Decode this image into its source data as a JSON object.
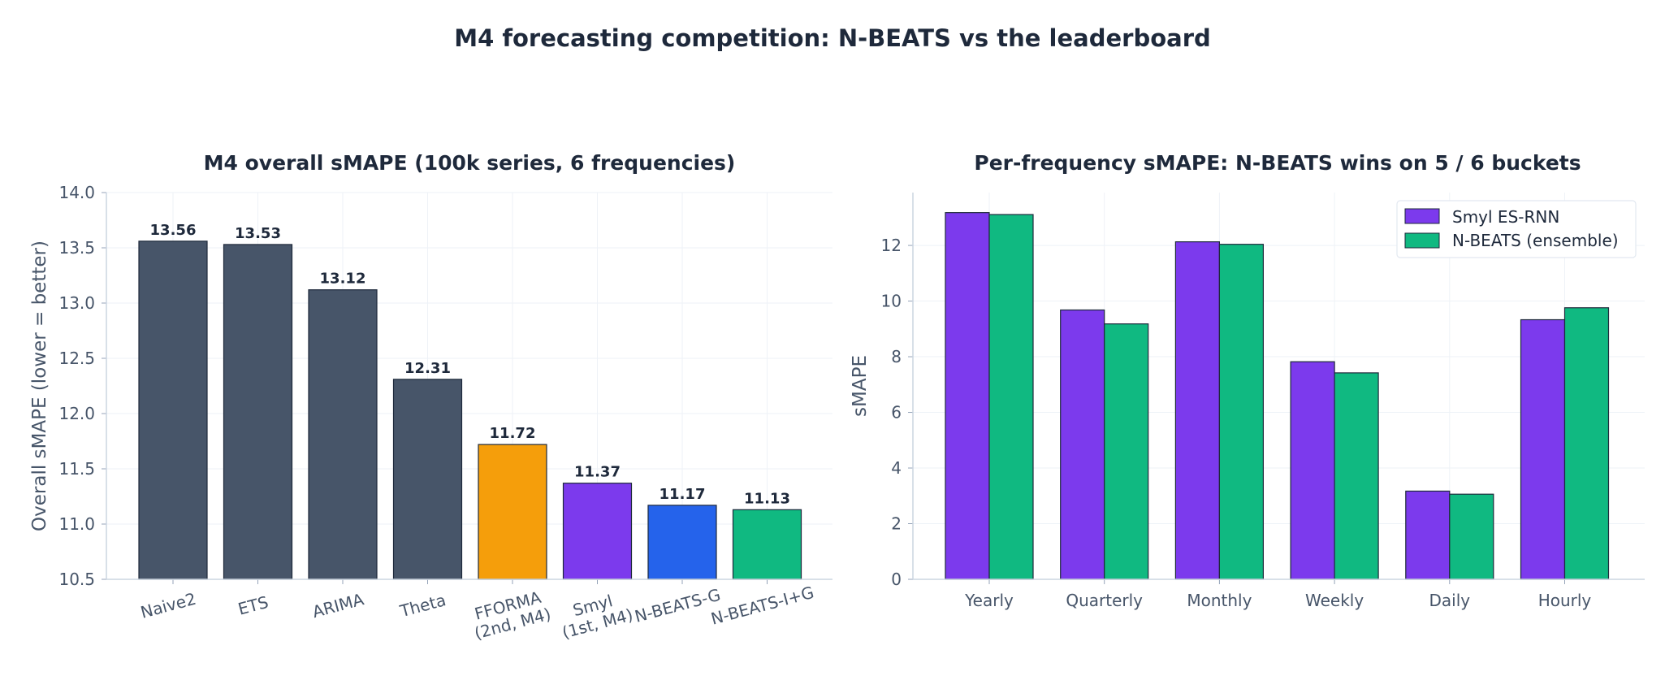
{
  "figure": {
    "title": "M4 forecasting competition: N-BEATS vs the leaderboard"
  },
  "chart_data": [
    {
      "type": "bar",
      "title": "M4 overall sMAPE (100k series, 6 frequencies)",
      "xlabel": "",
      "ylabel": "Overall sMAPE (lower = better)",
      "ylim": [
        10.5,
        14.0
      ],
      "yticks": [
        "10.5",
        "11.0",
        "11.5",
        "12.0",
        "12.5",
        "13.0",
        "13.5",
        "14.0"
      ],
      "grid": true,
      "categories": [
        [
          "Naive2"
        ],
        [
          "ETS"
        ],
        [
          "ARIMA"
        ],
        [
          "Theta"
        ],
        [
          "FFORMA",
          "(2nd, M4)"
        ],
        [
          "Smyl",
          "(1st, M4)"
        ],
        [
          "N-BEATS-G"
        ],
        [
          "N-BEATS-I+G"
        ]
      ],
      "values": [
        13.56,
        13.53,
        13.12,
        12.31,
        11.72,
        11.37,
        11.17,
        11.13
      ],
      "value_labels": [
        "13.56",
        "13.53",
        "13.12",
        "12.31",
        "11.72",
        "11.37",
        "11.17",
        "11.13"
      ],
      "colors": [
        "#475569",
        "#475569",
        "#475569",
        "#475569",
        "#f59e0b",
        "#7c3aed",
        "#2563eb",
        "#10b981"
      ]
    },
    {
      "type": "bar",
      "title": "Per-frequency sMAPE: N-BEATS wins on 5 / 6 buckets",
      "xlabel": "",
      "ylabel": "sMAPE",
      "ylim": [
        0,
        13.9
      ],
      "yticks": [
        "0",
        "2",
        "4",
        "6",
        "8",
        "10",
        "12"
      ],
      "grid": true,
      "legend": "top-right",
      "categories": [
        "Yearly",
        "Quarterly",
        "Monthly",
        "Weekly",
        "Daily",
        "Hourly"
      ],
      "series": [
        {
          "name": "Smyl ES-RNN",
          "color": "#7c3aed",
          "values": [
            13.18,
            9.68,
            12.13,
            7.82,
            3.17,
            9.33
          ]
        },
        {
          "name": "N-BEATS (ensemble)",
          "color": "#10b981",
          "values": [
            13.11,
            9.18,
            12.04,
            7.42,
            3.06,
            9.76
          ]
        }
      ]
    }
  ]
}
